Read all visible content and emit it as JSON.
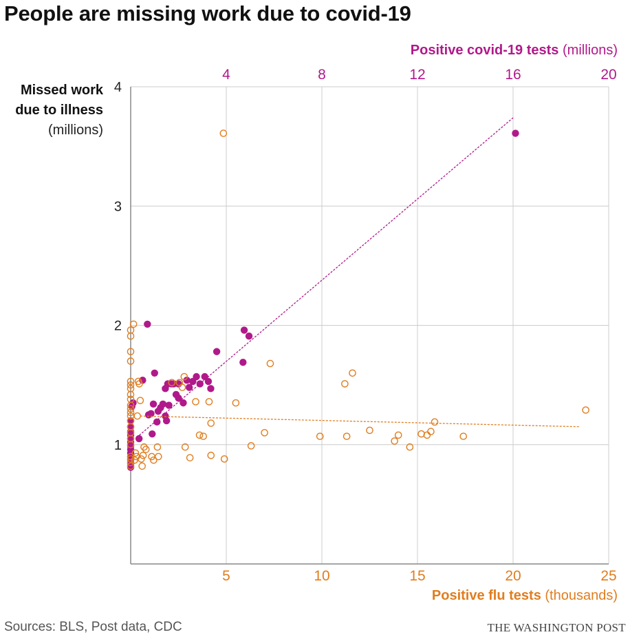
{
  "title": "People are missing work due to covid-19",
  "footer": {
    "source": "Sources: BLS, Post data, CDC",
    "publisher": "THE WASHINGTON POST"
  },
  "axes": {
    "y_label_bold_1": "Missed work",
    "y_label_bold_2": "due to illness",
    "y_label_unit": "(millions)",
    "top_label_bold": "Positive covid-19 tests",
    "top_label_unit": " (millions)",
    "bottom_label_bold": "Positive flu tests",
    "bottom_label_unit": " (thousands)"
  },
  "colors": {
    "covid": "#b0198a",
    "flu": "#e07d1e",
    "grid": "#cccccc",
    "axis": "#888888"
  },
  "chart_data": {
    "type": "scatter",
    "title": "People are missing work due to covid-19",
    "y": {
      "label": "Missed work due to illness (millions)",
      "range": [
        0,
        4
      ],
      "ticks": [
        1,
        2,
        3,
        4
      ]
    },
    "x_top": {
      "label": "Positive covid-19 tests (millions)",
      "range": [
        0,
        20
      ],
      "ticks": [
        4,
        8,
        12,
        16,
        20
      ]
    },
    "x_bottom": {
      "label": "Positive flu tests (thousands)",
      "range": [
        0,
        25
      ],
      "ticks": [
        5,
        10,
        15,
        20,
        25
      ]
    },
    "grid": true,
    "series": [
      {
        "name": "Positive covid-19 tests",
        "axis": "top",
        "marker": "filled-circle",
        "trendline": [
          [
            0.25,
            1.06
          ],
          [
            16.0,
            3.74
          ]
        ],
        "points": [
          [
            0.0,
            0.81
          ],
          [
            0.0,
            0.84
          ],
          [
            0.0,
            0.87
          ],
          [
            0.0,
            0.9
          ],
          [
            0.0,
            0.93
          ],
          [
            0.0,
            0.96
          ],
          [
            0.0,
            0.99
          ],
          [
            0.0,
            1.02
          ],
          [
            0.0,
            1.05
          ],
          [
            0.0,
            1.08
          ],
          [
            0.0,
            1.11
          ],
          [
            0.0,
            1.15
          ],
          [
            0.0,
            1.2
          ],
          [
            0.05,
            1.32
          ],
          [
            0.1,
            1.35
          ],
          [
            0.35,
            1.05
          ],
          [
            0.5,
            1.54
          ],
          [
            0.7,
            2.01
          ],
          [
            0.75,
            1.25
          ],
          [
            0.85,
            1.26
          ],
          [
            0.9,
            1.09
          ],
          [
            0.95,
            1.34
          ],
          [
            1.0,
            1.6
          ],
          [
            1.1,
            1.19
          ],
          [
            1.15,
            1.28
          ],
          [
            1.25,
            1.31
          ],
          [
            1.35,
            1.34
          ],
          [
            1.45,
            1.47
          ],
          [
            1.45,
            1.24
          ],
          [
            1.5,
            1.2
          ],
          [
            1.55,
            1.51
          ],
          [
            1.6,
            1.33
          ],
          [
            1.7,
            1.51
          ],
          [
            1.8,
            1.51
          ],
          [
            1.9,
            1.42
          ],
          [
            2.0,
            1.51
          ],
          [
            2.0,
            1.39
          ],
          [
            2.2,
            1.35
          ],
          [
            2.35,
            1.54
          ],
          [
            2.45,
            1.48
          ],
          [
            2.6,
            1.53
          ],
          [
            2.75,
            1.57
          ],
          [
            2.9,
            1.51
          ],
          [
            3.1,
            1.57
          ],
          [
            3.25,
            1.53
          ],
          [
            3.35,
            1.47
          ],
          [
            3.6,
            1.78
          ],
          [
            4.7,
            1.69
          ],
          [
            4.75,
            1.96
          ],
          [
            4.95,
            1.91
          ],
          [
            16.1,
            3.61
          ]
        ]
      },
      {
        "name": "Positive flu tests",
        "axis": "bottom",
        "marker": "open-circle",
        "trendline": [
          [
            0.5,
            1.24
          ],
          [
            23.5,
            1.15
          ]
        ],
        "points": [
          [
            0.0,
            0.82
          ],
          [
            0.0,
            0.85
          ],
          [
            0.0,
            0.88
          ],
          [
            0.0,
            0.9
          ],
          [
            0.0,
            1.0
          ],
          [
            0.0,
            1.05
          ],
          [
            0.0,
            1.1
          ],
          [
            0.0,
            1.15
          ],
          [
            0.0,
            1.2
          ],
          [
            0.0,
            1.24
          ],
          [
            0.0,
            1.27
          ],
          [
            0.0,
            1.3
          ],
          [
            0.0,
            1.33
          ],
          [
            0.0,
            1.38
          ],
          [
            0.0,
            1.42
          ],
          [
            0.0,
            1.47
          ],
          [
            0.0,
            1.5
          ],
          [
            0.0,
            1.53
          ],
          [
            0.0,
            1.7
          ],
          [
            0.0,
            1.78
          ],
          [
            0.0,
            1.91
          ],
          [
            0.0,
            1.96
          ],
          [
            0.15,
            2.01
          ],
          [
            0.2,
            0.87
          ],
          [
            0.25,
            0.93
          ],
          [
            0.3,
            0.9
          ],
          [
            0.35,
            1.24
          ],
          [
            0.4,
            1.53
          ],
          [
            0.45,
            1.51
          ],
          [
            0.5,
            1.37
          ],
          [
            0.55,
            0.88
          ],
          [
            0.6,
            0.82
          ],
          [
            0.65,
            0.91
          ],
          [
            0.7,
            0.98
          ],
          [
            0.8,
            0.96
          ],
          [
            1.1,
            0.9
          ],
          [
            1.2,
            0.87
          ],
          [
            1.4,
            0.98
          ],
          [
            1.45,
            0.9
          ],
          [
            2.15,
            1.52
          ],
          [
            2.55,
            1.52
          ],
          [
            2.7,
            1.48
          ],
          [
            2.8,
            1.57
          ],
          [
            2.85,
            0.98
          ],
          [
            3.1,
            0.89
          ],
          [
            3.4,
            1.36
          ],
          [
            3.6,
            1.08
          ],
          [
            3.8,
            1.07
          ],
          [
            4.1,
            1.36
          ],
          [
            4.2,
            1.18
          ],
          [
            4.2,
            0.91
          ],
          [
            4.9,
            0.88
          ],
          [
            4.85,
            3.61
          ],
          [
            5.5,
            1.35
          ],
          [
            6.3,
            0.99
          ],
          [
            7.0,
            1.1
          ],
          [
            7.3,
            1.68
          ],
          [
            9.9,
            1.07
          ],
          [
            11.2,
            1.51
          ],
          [
            11.3,
            1.07
          ],
          [
            11.6,
            1.6
          ],
          [
            12.5,
            1.12
          ],
          [
            13.8,
            1.03
          ],
          [
            14.0,
            1.08
          ],
          [
            14.6,
            0.98
          ],
          [
            15.2,
            1.09
          ],
          [
            15.5,
            1.08
          ],
          [
            15.7,
            1.11
          ],
          [
            15.9,
            1.19
          ],
          [
            17.4,
            1.07
          ],
          [
            23.8,
            1.29
          ]
        ]
      }
    ]
  }
}
